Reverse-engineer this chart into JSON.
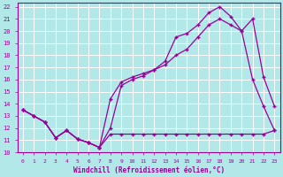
{
  "xlabel": "Windchill (Refroidissement éolien,°C)",
  "xlim": [
    -0.5,
    23.5
  ],
  "ylim": [
    10,
    22.3
  ],
  "xticks": [
    0,
    1,
    2,
    3,
    4,
    5,
    6,
    7,
    8,
    9,
    10,
    11,
    12,
    13,
    14,
    15,
    16,
    17,
    18,
    19,
    20,
    21,
    22,
    23
  ],
  "yticks": [
    10,
    11,
    12,
    13,
    14,
    15,
    16,
    17,
    18,
    19,
    20,
    21,
    22
  ],
  "bg_color": "#b3e8e8",
  "grid_color": "#c8c8c8",
  "line_color": "#990099",
  "series1_x": [
    0,
    1,
    2,
    3,
    4,
    5,
    6,
    7,
    8,
    9,
    10,
    11,
    12,
    13,
    14,
    15,
    16,
    17,
    18,
    19,
    20,
    21,
    22,
    23
  ],
  "series1_y": [
    13.5,
    13.0,
    12.5,
    11.2,
    11.8,
    11.1,
    10.8,
    10.4,
    11.5,
    11.5,
    11.5,
    11.5,
    11.5,
    11.5,
    11.5,
    11.5,
    11.5,
    11.5,
    11.5,
    11.5,
    11.5,
    11.5,
    11.5,
    11.8
  ],
  "series2_x": [
    0,
    1,
    2,
    3,
    4,
    5,
    6,
    7,
    8,
    9,
    10,
    11,
    12,
    13,
    14,
    15,
    16,
    17,
    18,
    19,
    20,
    21,
    22,
    23
  ],
  "series2_y": [
    13.5,
    13.0,
    12.5,
    11.2,
    11.8,
    11.1,
    10.8,
    10.4,
    14.4,
    15.8,
    16.2,
    16.5,
    16.8,
    17.2,
    18.0,
    18.5,
    19.5,
    20.5,
    21.0,
    20.5,
    20.0,
    16.0,
    13.8,
    11.8
  ],
  "series3_x": [
    0,
    1,
    2,
    3,
    4,
    5,
    6,
    7,
    8,
    9,
    10,
    11,
    12,
    13,
    14,
    15,
    16,
    17,
    18,
    19,
    20,
    21,
    22,
    23
  ],
  "series3_y": [
    13.5,
    13.0,
    12.5,
    11.2,
    11.8,
    11.1,
    10.8,
    10.4,
    12.0,
    15.5,
    16.0,
    16.3,
    16.8,
    17.5,
    19.5,
    19.8,
    20.5,
    21.5,
    22.0,
    21.2,
    20.0,
    21.0,
    16.2,
    13.8
  ]
}
